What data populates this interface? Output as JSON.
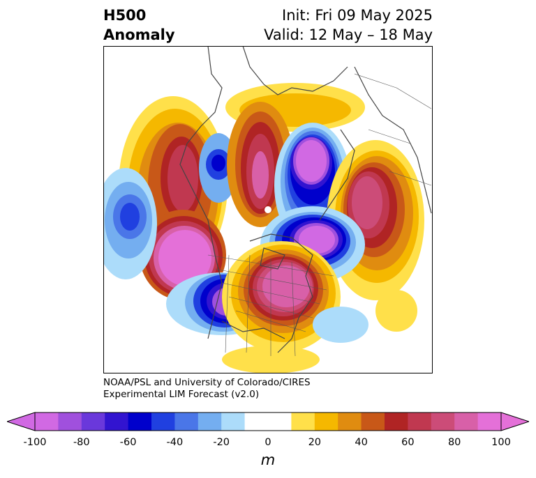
{
  "header": {
    "variable": "H500",
    "field": "Anomaly",
    "init": "Init: Fri 09 May 2025",
    "valid": "Valid: 12 May – 18 May"
  },
  "credit": {
    "line1": "NOAA/PSL and University of Colorado/CIRES",
    "line2": "Experimental LIM Forecast (v2.0)"
  },
  "colorbar": {
    "unit": "m",
    "ticks": [
      "-100",
      "-80",
      "-60",
      "-40",
      "-20",
      "0",
      "20",
      "40",
      "60",
      "80",
      "100"
    ],
    "colors": [
      "#d169e3",
      "#a050dd",
      "#6a38db",
      "#3214d0",
      "#0000cc",
      "#2040e0",
      "#4a76e8",
      "#74aef0",
      "#acdcfa",
      "#ffffff",
      "#ffffff",
      "#ffe04a",
      "#f5b800",
      "#e08c10",
      "#c85818",
      "#b02424",
      "#c03850",
      "#cc4c78",
      "#d860a8",
      "#e470d8"
    ]
  }
}
